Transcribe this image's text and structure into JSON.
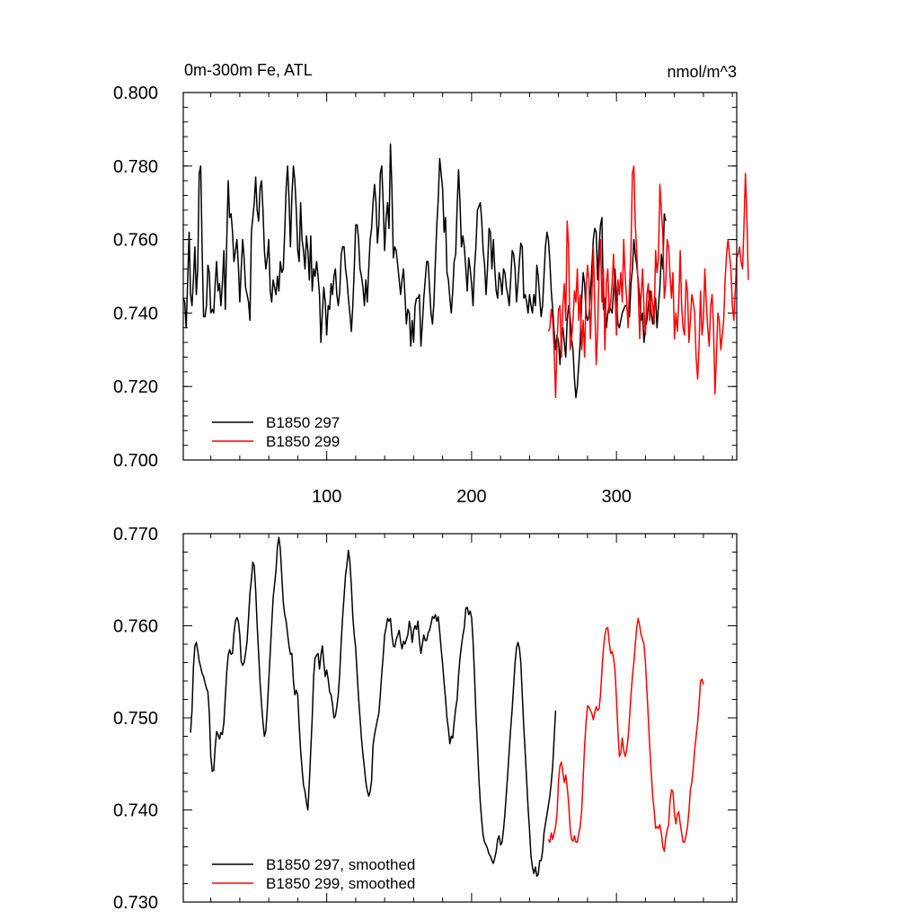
{
  "chart_data": [
    {
      "type": "line",
      "title": "0m-300m Fe, ATL",
      "units": "nmol/m^3",
      "xlim": [
        1,
        383
      ],
      "ylim": [
        0.7,
        0.8
      ],
      "xticks": [
        100,
        200,
        300
      ],
      "xtick_labels": [
        "100",
        "200",
        "300"
      ],
      "yticks": [
        0.7,
        0.72,
        0.74,
        0.76,
        0.78,
        0.8
      ],
      "ytick_labels": [
        "0.700",
        "0.720",
        "0.740",
        "0.760",
        "0.780",
        "0.800"
      ],
      "legend_position": "bottom-left",
      "series": [
        {
          "name": "B1850 297",
          "color": "#000000",
          "x_start": 1,
          "values": [
            0.744,
            0.743,
            0.736,
            0.748,
            0.762,
            0.745,
            0.742,
            0.749,
            0.758,
            0.745,
            0.752,
            0.778,
            0.78,
            0.757,
            0.739,
            0.739,
            0.742,
            0.753,
            0.751,
            0.74,
            0.741,
            0.74,
            0.748,
            0.754,
            0.746,
            0.748,
            0.742,
            0.748,
            0.757,
            0.741,
            0.76,
            0.776,
            0.766,
            0.767,
            0.762,
            0.754,
            0.757,
            0.76,
            0.753,
            0.743,
            0.752,
            0.76,
            0.755,
            0.747,
            0.745,
            0.743,
            0.738,
            0.762,
            0.766,
            0.77,
            0.777,
            0.768,
            0.765,
            0.774,
            0.776,
            0.768,
            0.757,
            0.752,
            0.755,
            0.76,
            0.746,
            0.743,
            0.749,
            0.747,
            0.745,
            0.75,
            0.746,
            0.754,
            0.751,
            0.752,
            0.762,
            0.774,
            0.78,
            0.771,
            0.758,
            0.772,
            0.78,
            0.776,
            0.768,
            0.757,
            0.754,
            0.77,
            0.76,
            0.757,
            0.752,
            0.761,
            0.757,
            0.749,
            0.761,
            0.746,
            0.752,
            0.75,
            0.754,
            0.75,
            0.745,
            0.732,
            0.74,
            0.747,
            0.743,
            0.734,
            0.742,
            0.741,
            0.748,
            0.745,
            0.75,
            0.752,
            0.745,
            0.742,
            0.746,
            0.756,
            0.758,
            0.758,
            0.752,
            0.749,
            0.744,
            0.74,
            0.735,
            0.742,
            0.752,
            0.764,
            0.764,
            0.76,
            0.752,
            0.75,
            0.747,
            0.742,
            0.749,
            0.743,
            0.752,
            0.76,
            0.763,
            0.77,
            0.775,
            0.77,
            0.759,
            0.764,
            0.778,
            0.78,
            0.77,
            0.757,
            0.766,
            0.77,
            0.763,
            0.786,
            0.774,
            0.755,
            0.758,
            0.757,
            0.753,
            0.749,
            0.745,
            0.749,
            0.752,
            0.745,
            0.737,
            0.741,
            0.74,
            0.731,
            0.738,
            0.732,
            0.742,
            0.744,
            0.744,
            0.745,
            0.731,
            0.737,
            0.744,
            0.749,
            0.754,
            0.754,
            0.747,
            0.74,
            0.737,
            0.743,
            0.754,
            0.764,
            0.771,
            0.782,
            0.778,
            0.774,
            0.762,
            0.766,
            0.751,
            0.749,
            0.744,
            0.74,
            0.746,
            0.754,
            0.756,
            0.769,
            0.779,
            0.77,
            0.758,
            0.761,
            0.758,
            0.752,
            0.746,
            0.755,
            0.752,
            0.748,
            0.742,
            0.752,
            0.758,
            0.768,
            0.769,
            0.77,
            0.765,
            0.757,
            0.753,
            0.745,
            0.752,
            0.763,
            0.762,
            0.752,
            0.76,
            0.752,
            0.746,
            0.744,
            0.751,
            0.749,
            0.745,
            0.752,
            0.751,
            0.747,
            0.745,
            0.742,
            0.749,
            0.757,
            0.756,
            0.752,
            0.743,
            0.748,
            0.754,
            0.759,
            0.758,
            0.744,
            0.745,
            0.743,
            0.74,
            0.745,
            0.742,
            0.74,
            0.745,
            0.742,
            0.753,
            0.75,
            0.744,
            0.739,
            0.742,
            0.75,
            0.758,
            0.762,
            0.76,
            0.754,
            0.746,
            0.741,
            0.735,
            0.73,
            0.734,
            0.732,
            0.726,
            0.734,
            0.736,
            0.732,
            0.728,
            0.738,
            0.742,
            0.739,
            0.733,
            0.73,
            0.722,
            0.717,
            0.72,
            0.726,
            0.732,
            0.744,
            0.751,
            0.748,
            0.74,
            0.738,
            0.739,
            0.745,
            0.752,
            0.76,
            0.763,
            0.762,
            0.749,
            0.758,
            0.764,
            0.766,
            0.741,
            0.744,
            0.736,
            0.74,
            0.742,
            0.741,
            0.74,
            0.746,
            0.752,
            0.744,
            0.737,
            0.736,
            0.738,
            0.74,
            0.741,
            0.742,
            0.742,
            0.739,
            0.739,
            0.748,
            0.752,
            0.76,
            0.756,
            0.753,
            0.749,
            0.744,
            0.738,
            0.74,
            0.732,
            0.736,
            0.738,
            0.742,
            0.746,
            0.74,
            0.737,
            0.742,
            0.744,
            0.736,
            0.742,
            0.747,
            0.756,
            0.752,
            0.767,
            0.765
          ]
        },
        {
          "name": "B1850 299",
          "color": "#ff0000",
          "x_start": 253,
          "values": [
            0.735,
            0.736,
            0.741,
            0.738,
            0.73,
            0.717,
            0.732,
            0.741,
            0.742,
            0.728,
            0.742,
            0.748,
            0.738,
            0.765,
            0.758,
            0.73,
            0.733,
            0.738,
            0.746,
            0.743,
            0.752,
            0.738,
            0.745,
            0.73,
            0.738,
            0.728,
            0.746,
            0.753,
            0.749,
            0.733,
            0.744,
            0.758,
            0.742,
            0.726,
            0.735,
            0.752,
            0.76,
            0.743,
            0.752,
            0.73,
            0.748,
            0.752,
            0.74,
            0.743,
            0.748,
            0.756,
            0.745,
            0.734,
            0.749,
            0.745,
            0.751,
            0.743,
            0.76,
            0.75,
            0.744,
            0.736,
            0.748,
            0.757,
            0.778,
            0.78,
            0.764,
            0.757,
            0.747,
            0.733,
            0.745,
            0.752,
            0.741,
            0.734,
            0.745,
            0.748,
            0.738,
            0.746,
            0.742,
            0.737,
            0.757,
            0.751,
            0.755,
            0.775,
            0.768,
            0.761,
            0.744,
            0.748,
            0.76,
            0.758,
            0.75,
            0.744,
            0.751,
            0.733,
            0.74,
            0.735,
            0.743,
            0.757,
            0.742,
            0.736,
            0.734,
            0.749,
            0.746,
            0.732,
            0.738,
            0.745,
            0.743,
            0.74,
            0.728,
            0.722,
            0.731,
            0.746,
            0.734,
            0.738,
            0.752,
            0.743,
            0.736,
            0.731,
            0.742,
            0.745,
            0.736,
            0.718,
            0.728,
            0.74,
            0.738,
            0.73,
            0.734,
            0.738,
            0.749,
            0.756,
            0.76,
            0.756,
            0.752,
            0.742,
            0.738,
            0.746,
            0.755,
            0.756,
            0.758,
            0.754,
            0.752,
            0.764,
            0.778,
            0.766,
            0.749
          ]
        }
      ]
    },
    {
      "type": "line",
      "title": "",
      "xlim": [
        1,
        383
      ],
      "ylim": [
        0.73,
        0.77
      ],
      "xticks": [
        100,
        200,
        300
      ],
      "yticks": [
        0.73,
        0.74,
        0.75,
        0.76,
        0.77
      ],
      "ytick_labels": [
        "0.730",
        "0.740",
        "0.750",
        "0.760",
        "0.770"
      ],
      "legend_position": "bottom-left",
      "series": [
        {
          "name": "B1850 297, smoothed",
          "color": "#000000",
          "x_start": 6,
          "values": [
            0.7484,
            0.7508,
            0.7555,
            0.7578,
            0.7582,
            0.7573,
            0.7562,
            0.7555,
            0.7548,
            0.7545,
            0.7538,
            0.7532,
            0.7528,
            0.7505,
            0.7458,
            0.7442,
            0.7443,
            0.7468,
            0.7485,
            0.7482,
            0.7477,
            0.7484,
            0.7482,
            0.7495,
            0.7523,
            0.755,
            0.7568,
            0.7574,
            0.7569,
            0.757,
            0.7592,
            0.7605,
            0.7609,
            0.7605,
            0.759,
            0.7561,
            0.7557,
            0.756,
            0.757,
            0.7583,
            0.7608,
            0.7635,
            0.765,
            0.7669,
            0.7665,
            0.7638,
            0.7601,
            0.7569,
            0.7538,
            0.7515,
            0.7495,
            0.748,
            0.7486,
            0.751,
            0.754,
            0.7571,
            0.7601,
            0.763,
            0.7645,
            0.766,
            0.7686,
            0.7696,
            0.7683,
            0.7653,
            0.7626,
            0.7612,
            0.7605,
            0.7591,
            0.7578,
            0.7569,
            0.757,
            0.754,
            0.7525,
            0.753,
            0.7525,
            0.7492,
            0.7465,
            0.7445,
            0.7427,
            0.742,
            0.7408,
            0.74,
            0.743,
            0.7465,
            0.75,
            0.7545,
            0.7565,
            0.7568,
            0.757,
            0.7553,
            0.7568,
            0.7578,
            0.756,
            0.7545,
            0.7552,
            0.7542,
            0.7528,
            0.7525,
            0.7515,
            0.75,
            0.7502,
            0.7512,
            0.7525,
            0.755,
            0.7583,
            0.761,
            0.7632,
            0.7655,
            0.7667,
            0.7682,
            0.767,
            0.7643,
            0.761,
            0.759,
            0.7576,
            0.7548,
            0.7522,
            0.75,
            0.7478,
            0.746,
            0.7446,
            0.743,
            0.7421,
            0.7415,
            0.742,
            0.7432,
            0.747,
            0.7482,
            0.749,
            0.7498,
            0.7505,
            0.7525,
            0.7548,
            0.7567,
            0.759,
            0.7598,
            0.7608,
            0.7605,
            0.7608,
            0.759,
            0.7578,
            0.7577,
            0.7585,
            0.759,
            0.7595,
            0.7583,
            0.7575,
            0.7583,
            0.758,
            0.7585,
            0.759,
            0.7605,
            0.7597,
            0.7582,
            0.7595,
            0.76,
            0.7596,
            0.7605,
            0.7584,
            0.757,
            0.758,
            0.759,
            0.7584,
            0.7584,
            0.7592,
            0.7595,
            0.7602,
            0.761,
            0.7608,
            0.7612,
            0.7605,
            0.761,
            0.7594,
            0.7575,
            0.7559,
            0.7538,
            0.7521,
            0.75,
            0.7488,
            0.7472,
            0.748,
            0.7478,
            0.7495,
            0.751,
            0.752,
            0.7546,
            0.7565,
            0.7578,
            0.759,
            0.7598,
            0.7619,
            0.762,
            0.7612,
            0.7616,
            0.7609,
            0.7584,
            0.7548,
            0.7505,
            0.747,
            0.7435,
            0.7408,
            0.7388,
            0.7372,
            0.7365,
            0.7362,
            0.7358,
            0.7352,
            0.735,
            0.7345,
            0.7342,
            0.7348,
            0.7355,
            0.7368,
            0.7372,
            0.7362,
            0.7365,
            0.7378,
            0.7396,
            0.7418,
            0.744,
            0.7465,
            0.7488,
            0.751,
            0.7535,
            0.756,
            0.7576,
            0.7582,
            0.7576,
            0.756,
            0.7525,
            0.749,
            0.7462,
            0.7432,
            0.7402,
            0.7378,
            0.735,
            0.7338,
            0.7331,
            0.7338,
            0.7328,
            0.733,
            0.7345,
            0.7345,
            0.7355,
            0.7375,
            0.7385,
            0.7395,
            0.7405,
            0.7415,
            0.743,
            0.7448,
            0.7478,
            0.7508
          ]
        },
        {
          "name": "B1850 299, smoothed",
          "color": "#ff0000",
          "x_start": 253,
          "values": [
            0.7368,
            0.7365,
            0.7375,
            0.7368,
            0.7375,
            0.7382,
            0.7396,
            0.7432,
            0.7448,
            0.7452,
            0.744,
            0.743,
            0.7438,
            0.7425,
            0.7408,
            0.738,
            0.7368,
            0.7366,
            0.7372,
            0.7365,
            0.7365,
            0.7374,
            0.7382,
            0.74,
            0.7435,
            0.747,
            0.7495,
            0.7513,
            0.7512,
            0.7508,
            0.7505,
            0.7498,
            0.7506,
            0.7512,
            0.7508,
            0.751,
            0.7525,
            0.7552,
            0.7575,
            0.759,
            0.7597,
            0.7598,
            0.7582,
            0.757,
            0.7572,
            0.7565,
            0.7552,
            0.752,
            0.7485,
            0.7458,
            0.7462,
            0.7478,
            0.7465,
            0.7458,
            0.7465,
            0.7478,
            0.75,
            0.7525,
            0.7545,
            0.756,
            0.758,
            0.7598,
            0.7608,
            0.76,
            0.759,
            0.7585,
            0.758,
            0.756,
            0.753,
            0.75,
            0.7468,
            0.744,
            0.7415,
            0.74,
            0.738,
            0.7382,
            0.738,
            0.7384,
            0.7375,
            0.736,
            0.7355,
            0.737,
            0.7378,
            0.7384,
            0.741,
            0.7422,
            0.742,
            0.7396,
            0.7385,
            0.7395,
            0.7398,
            0.7385,
            0.7375,
            0.7365,
            0.7365,
            0.7372,
            0.7382,
            0.7398,
            0.7422,
            0.743,
            0.7445,
            0.7465,
            0.748,
            0.7495,
            0.7515,
            0.754,
            0.7542,
            0.7536
          ]
        }
      ]
    }
  ]
}
